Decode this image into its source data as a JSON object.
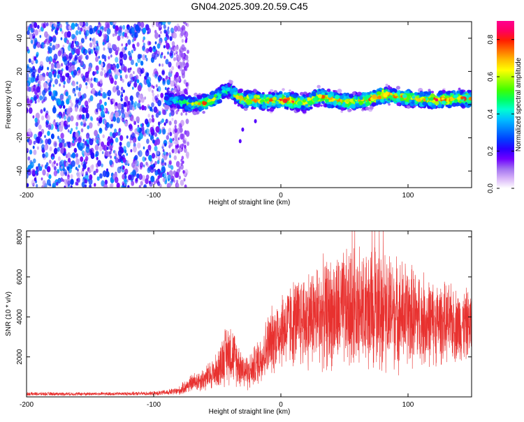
{
  "title": "GN04.2025.309.20.59.C45",
  "colors": {
    "snr_line": "#e8312f",
    "axis": "#000000",
    "colormap": [
      "#ffffff",
      "#d8b4f8",
      "#a070f0",
      "#7000ff",
      "#2a00ff",
      "#0040ff",
      "#0080ff",
      "#00c0ff",
      "#00ffd0",
      "#00ff60",
      "#40ff00",
      "#a0ff00",
      "#ffff00",
      "#ffc000",
      "#ff7000",
      "#ff2000",
      "#ff0060",
      "#ff0090"
    ]
  },
  "chart_data": [
    {
      "type": "heatmap",
      "xlabel": "Height of straight line (km)",
      "ylabel": "Frequency (Hz)",
      "xlim": [
        -200,
        150
      ],
      "ylim": [
        -50,
        50
      ],
      "xticks": [
        -200,
        -100,
        0,
        100
      ],
      "xtick_labels": [
        "-200",
        "-100",
        "0",
        "100"
      ],
      "yticks": [
        -40,
        -20,
        0,
        20,
        40
      ],
      "ytick_labels": [
        "-40",
        "-20",
        "0",
        "20",
        "40"
      ],
      "colorbar": {
        "label": "Normalized spectral amplitude",
        "range": [
          0,
          0.9
        ],
        "ticks": [
          0,
          0.2,
          0.4,
          0.6,
          0.8
        ],
        "tick_labels": [
          "0.0",
          "0.2",
          "0.4",
          "0.6",
          "0.8"
        ]
      },
      "noise_region_x": [
        -200,
        -85
      ],
      "ridge": {
        "x": [
          -90,
          -80,
          -70,
          -60,
          -50,
          -45,
          -40,
          -35,
          -30,
          -20,
          -10,
          0,
          10,
          20,
          30,
          40,
          50,
          60,
          70,
          80,
          90,
          100,
          110,
          120,
          130,
          140,
          150
        ],
        "frequency": [
          3,
          2,
          0,
          1,
          4,
          8,
          9,
          5,
          3,
          3,
          2,
          3,
          2,
          1,
          5,
          3,
          2,
          2,
          3,
          6,
          5,
          4,
          3,
          3,
          3,
          4,
          3
        ],
        "peak_amplitude": [
          0.4,
          0.45,
          0.6,
          0.7,
          0.6,
          0.55,
          0.5,
          0.65,
          0.75,
          0.8,
          0.78,
          0.75,
          0.8,
          0.7,
          0.72,
          0.75,
          0.7,
          0.68,
          0.75,
          0.8,
          0.7,
          0.72,
          0.65,
          0.8,
          0.75,
          0.75,
          0.7
        ]
      }
    },
    {
      "type": "line",
      "xlabel": "Height of straight line (km)",
      "ylabel": "SNR (10 * v/v)",
      "xlim": [
        -200,
        150
      ],
      "ylim": [
        0,
        8300
      ],
      "xticks": [
        -200,
        -100,
        0,
        100
      ],
      "xtick_labels": [
        "-200",
        "-100",
        "0",
        "100"
      ],
      "yticks": [
        2000,
        4000,
        6000,
        8000
      ],
      "ytick_labels": [
        "2000",
        "4000",
        "6000",
        "8000"
      ],
      "series": [
        {
          "name": "SNR",
          "x": [
            -200,
            -180,
            -160,
            -140,
            -120,
            -100,
            -90,
            -80,
            -75,
            -70,
            -60,
            -50,
            -45,
            -40,
            -35,
            -30,
            -25,
            -20,
            -15,
            -10,
            -5,
            0,
            10,
            20,
            30,
            40,
            50,
            60,
            70,
            80,
            90,
            100,
            110,
            120,
            130,
            140,
            150
          ],
          "mean": [
            150,
            150,
            150,
            150,
            160,
            170,
            220,
            300,
            500,
            700,
            900,
            1300,
            2000,
            2300,
            1800,
            1400,
            1200,
            1600,
            2000,
            2600,
            3000,
            3400,
            3700,
            3900,
            4100,
            4200,
            4300,
            4300,
            4300,
            4400,
            4200,
            4100,
            3900,
            3700,
            3700,
            3600,
            3600
          ],
          "amplitude": [
            100,
            100,
            100,
            100,
            100,
            120,
            150,
            250,
            400,
            500,
            700,
            1000,
            1600,
            1800,
            1400,
            1100,
            1000,
            1200,
            1500,
            1800,
            2000,
            2200,
            2500,
            2800,
            3000,
            3200,
            3400,
            3500,
            3600,
            3500,
            3200,
            3000,
            2700,
            2400,
            2200,
            2100,
            2000
          ],
          "max_peak": 8300
        }
      ]
    }
  ]
}
